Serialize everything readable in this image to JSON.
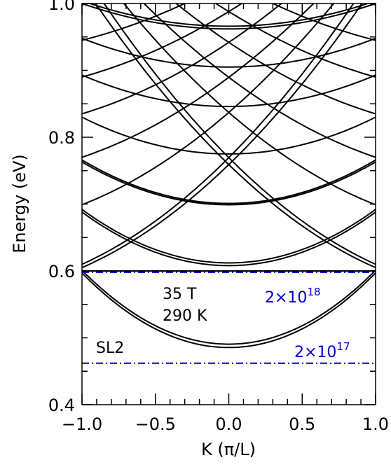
{
  "chart_data": {
    "type": "line",
    "xlabel": "K (π/L)",
    "ylabel": "Energy (eV)",
    "xlim": [
      -1.0,
      1.0
    ],
    "ylim": [
      0.4,
      1.0
    ],
    "x_ticks": [
      "−1.0",
      "−0.5",
      "0.0",
      "0.5",
      "1.0"
    ],
    "x_tick_values": [
      -1.0,
      -0.5,
      0.0,
      0.5,
      1.0
    ],
    "y_ticks": [
      "0.4",
      "0.6",
      "0.8",
      "1.0"
    ],
    "y_tick_values": [
      0.4,
      0.6,
      0.8,
      1.0
    ],
    "grid": false,
    "series": [
      {
        "family": "parabolic",
        "e0": 0.4855,
        "e_edge": 0.597
      },
      {
        "family": "parabolic",
        "e0": 0.4905,
        "e_edge": 0.601
      },
      {
        "family": "parabolic",
        "e0": 0.608,
        "e_edge": 0.688
      },
      {
        "family": "parabolic",
        "e0": 0.612,
        "e_edge": 0.692
      },
      {
        "family": "parabolic",
        "e0": 0.699,
        "e_edge": 0.763
      },
      {
        "family": "parabolic",
        "e0": 0.701,
        "e_edge": 0.766
      },
      {
        "family": "parabolic",
        "e0": 0.775,
        "e_edge": 0.83
      },
      {
        "family": "parabolic",
        "e0": 0.846,
        "e_edge": 0.893
      },
      {
        "family": "parabolic",
        "e0": 0.905,
        "e_edge": 0.948
      },
      {
        "family": "parabolic",
        "e0": 0.962,
        "e_edge": 1.0
      },
      {
        "family": "parabolic",
        "e0": 0.966,
        "e_edge": 1.004
      },
      {
        "family": "crossing",
        "e_left": 0.605,
        "e_right": 1.03
      },
      {
        "family": "crossing",
        "e_left": 0.61,
        "e_right": 1.05
      },
      {
        "family": "crossing",
        "e_left": 0.699,
        "e_right": 1.08
      },
      {
        "family": "crossing",
        "e_left": 0.77,
        "e_right": 1.1
      },
      {
        "family": "crossing",
        "e_left": 0.835,
        "e_right": 1.13
      },
      {
        "family": "crossing",
        "e_left": 0.89,
        "e_right": 1.16
      },
      {
        "family": "crossing",
        "e_left": 0.945,
        "e_right": 1.19
      },
      {
        "family": "crossing",
        "e_left": 0.998,
        "e_right": 1.22
      },
      {
        "family": "crossing",
        "e_left": 0.6,
        "e_right": 0.6,
        "note": "lowest crossing branch"
      }
    ],
    "reference_lines": [
      {
        "y": 0.598,
        "label_base": "2×10",
        "label_exp": "18",
        "color": "#0000cc",
        "style": "dash-dot"
      },
      {
        "y": 0.462,
        "label_base": "2×10",
        "label_exp": "17",
        "color": "#0000cc",
        "style": "dash-dot"
      }
    ],
    "annotations": [
      {
        "text": "35 T",
        "x": -0.58,
        "y": 0.575
      },
      {
        "text": "290 K",
        "x": -0.58,
        "y": 0.544
      },
      {
        "text": "SL2",
        "x": -0.8,
        "y": 0.486
      }
    ]
  },
  "colors": {
    "curve": "#000000",
    "reference": "#0000cc"
  }
}
